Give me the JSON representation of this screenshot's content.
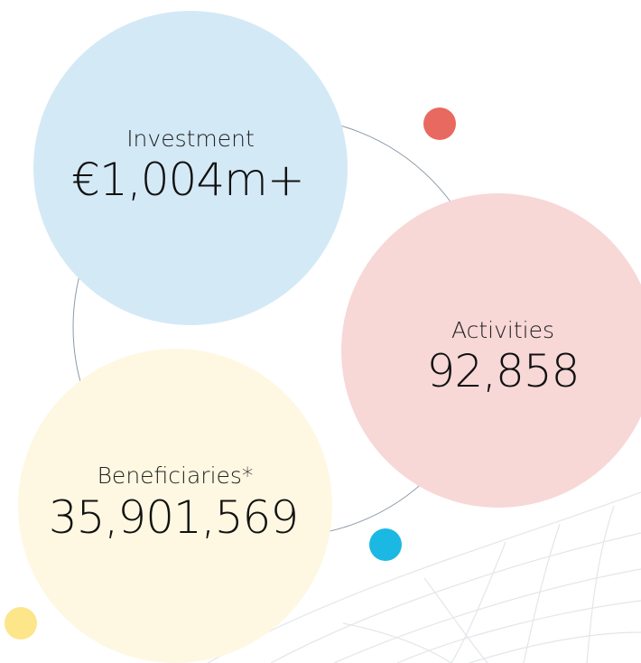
{
  "items": [
    {
      "label": "Investment",
      "value": "€1,004m+"
    },
    {
      "label": "Activities",
      "value": "92,858"
    },
    {
      "label": "Beneficiaries*",
      "value": "35,901,569"
    }
  ]
}
